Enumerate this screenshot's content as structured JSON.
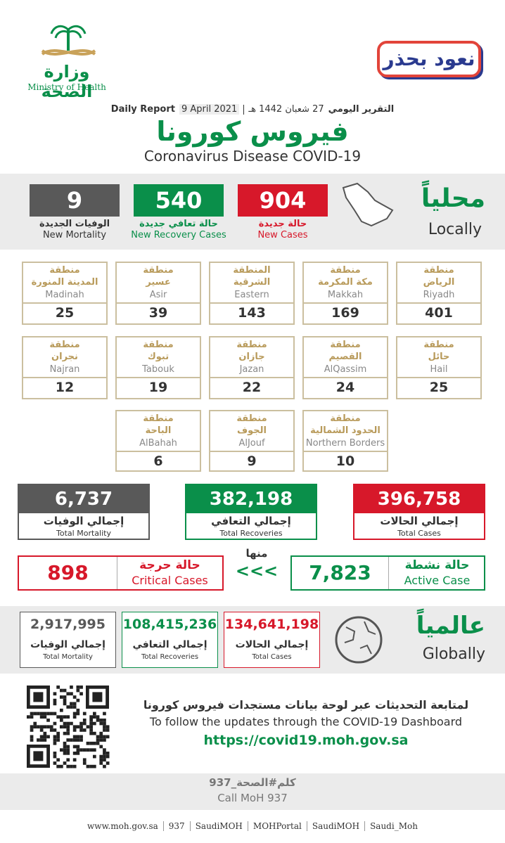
{
  "header": {
    "ministry_ar": "وزارة الصحة",
    "ministry_en": "Ministry of Health",
    "badge": "نعود بحذر",
    "report_ar": "التقرير اليومي",
    "date_hijri": "27 شعبان 1442 هـ",
    "date_gregorian": "9 April 2021",
    "report_en": "Daily Report",
    "title_ar": "فيروس كورونا",
    "title_en": "Coronavirus Disease COVID-19"
  },
  "local": {
    "heading_ar": "محلياً",
    "heading_en": "Locally",
    "stats": [
      {
        "value": "904",
        "label_ar": "حالة جديدة",
        "label_en": "New Cases"
      },
      {
        "value": "540",
        "label_ar": "حالة تعافي جديدة",
        "label_en": "New Recovery Cases"
      },
      {
        "value": "9",
        "label_ar": "الوفيات الجديدة",
        "label_en": "New Mortality"
      }
    ]
  },
  "regions": [
    {
      "prefix": "منطقة",
      "name_ar": "الرياض",
      "name_en": "Riyadh",
      "value": "401"
    },
    {
      "prefix": "منطقة",
      "name_ar": "مكة المكرمة",
      "name_en": "Makkah",
      "value": "169"
    },
    {
      "prefix": "المنطقة",
      "name_ar": "الشرقية",
      "name_en": "Eastern",
      "value": "143"
    },
    {
      "prefix": "منطقة",
      "name_ar": "عسير",
      "name_en": "Asir",
      "value": "39"
    },
    {
      "prefix": "منطقة",
      "name_ar": "المدينة المنورة",
      "name_en": "Madinah",
      "value": "25"
    },
    {
      "prefix": "منطقة",
      "name_ar": "حائل",
      "name_en": "Hail",
      "value": "25"
    },
    {
      "prefix": "منطقة",
      "name_ar": "القصيم",
      "name_en": "AlQassim",
      "value": "24"
    },
    {
      "prefix": "منطقة",
      "name_ar": "جازان",
      "name_en": "Jazan",
      "value": "22"
    },
    {
      "prefix": "منطقة",
      "name_ar": "تبوك",
      "name_en": "Tabouk",
      "value": "19"
    },
    {
      "prefix": "منطقة",
      "name_ar": "نجران",
      "name_en": "Najran",
      "value": "12"
    },
    {
      "prefix": "منطقة",
      "name_ar": "الحدود الشمالية",
      "name_en": "Northern Borders",
      "value": "10"
    },
    {
      "prefix": "منطقة",
      "name_ar": "الجوف",
      "name_en": "AlJouf",
      "value": "9"
    },
    {
      "prefix": "منطقة",
      "name_ar": "الباحة",
      "name_en": "AlBahah",
      "value": "6"
    }
  ],
  "totals": [
    {
      "value": "396,758",
      "label_ar": "إجمالي الحالات",
      "label_en": "Total Cases"
    },
    {
      "value": "382,198",
      "label_ar": "إجمالي التعافي",
      "label_en": "Total Recoveries"
    },
    {
      "value": "6,737",
      "label_ar": "إجمالي الوفيات",
      "label_en": "Total Mortality"
    }
  ],
  "active": {
    "label_ar": "حالة نشطة",
    "label_en": "Active Case",
    "value": "7,823"
  },
  "of_which": "منها",
  "arrows": "<<<",
  "critical": {
    "label_ar": "حالة حرجة",
    "label_en": "Critical Cases",
    "value": "898"
  },
  "global": {
    "heading_ar": "عالمياً",
    "heading_en": "Globally",
    "stats": [
      {
        "value": "134,641,198",
        "label_ar": "إجمالي الحالات",
        "label_en": "Total Cases"
      },
      {
        "value": "108,415,236",
        "label_ar": "إجمالي التعافي",
        "label_en": "Total Recoveries"
      },
      {
        "value": "2,917,995",
        "label_ar": "إجمالي الوفيات",
        "label_en": "Total Mortality"
      }
    ]
  },
  "dashboard": {
    "line_ar": "لمتابعة التحديثات عبر لوحة بيانات مستجدات فيروس كورونا",
    "line_en": "To follow the updates through the COVID-19 Dashboard",
    "url": "https://covid19.moh.gov.sa"
  },
  "call": {
    "ar": "كلم#الصحة_937",
    "en": "Call MoH 937"
  },
  "footer": [
    "www.moh.gov.sa",
    "937",
    "SaudiMOH",
    "MOHPortal",
    "SaudiMOH",
    "Saudi_Moh"
  ]
}
